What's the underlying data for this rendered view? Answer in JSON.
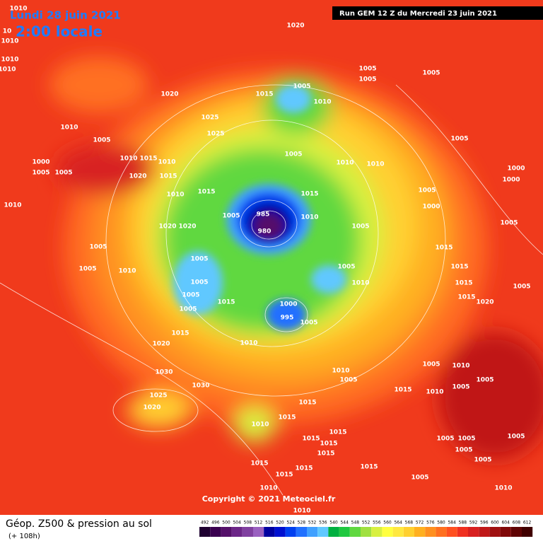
{
  "header": {
    "date": "Lundi 28 juin 2021",
    "time": "2:00 locale",
    "run": "Run GEM 12 Z du Mercredi 23 juin 2021"
  },
  "map": {
    "corner_labels": [
      "1010",
      "10",
      "1010"
    ],
    "pressure_labels": [
      1020,
      1010,
      1010,
      1005,
      1005,
      1005,
      1005,
      1015,
      1010,
      1020,
      1010,
      1005,
      1025,
      1025,
      1005,
      1010,
      1010,
      1005,
      1000,
      1005,
      1005,
      1010,
      1015,
      1010,
      1020,
      1015,
      1015,
      1010,
      1010,
      1005,
      1000,
      1000,
      1000,
      1005,
      985,
      980,
      1005,
      1015,
      1010,
      1005,
      1020,
      1020,
      1005,
      1005,
      1005,
      1015,
      1005,
      1010,
      1010,
      1005,
      1005,
      1005,
      1015,
      1000,
      995,
      1005,
      1015,
      1015,
      1015,
      1020,
      1005,
      1015,
      1020,
      1010,
      1030,
      1030,
      1010,
      1005,
      1015,
      1010,
      1010,
      1005,
      1005,
      1025,
      1020,
      1015,
      1005,
      1010,
      1015,
      1015,
      1015,
      1015,
      1015,
      1005,
      1005,
      1005,
      1005,
      1005,
      1010,
      1015,
      1015,
      1015,
      1005,
      1015,
      1010,
      1010
    ]
  },
  "copyright": "Copyright © 2021 Meteociel.fr",
  "legend": {
    "title": "Géop. Z500 & pression au sol",
    "subtitle": "(+ 108h)",
    "scale": [
      492,
      496,
      500,
      504,
      508,
      512,
      516,
      520,
      524,
      528,
      532,
      536,
      540,
      544,
      548,
      552,
      556,
      560,
      564,
      568,
      572,
      576,
      580,
      584,
      588,
      592,
      596,
      600,
      604,
      608,
      612
    ],
    "colors": [
      "#1e0030",
      "#3a0050",
      "#55106a",
      "#6c2688",
      "#8040a0",
      "#9a60c0",
      "#0000a0",
      "#0010d0",
      "#0040f0",
      "#2070ff",
      "#40a0ff",
      "#60c8ff",
      "#00b040",
      "#20c840",
      "#60d840",
      "#a0e040",
      "#d8f040",
      "#ffff40",
      "#ffe840",
      "#ffd030",
      "#ffb020",
      "#ff9020",
      "#ff7020",
      "#ff5020",
      "#f03020",
      "#d82020",
      "#c01818",
      "#a01010",
      "#800808",
      "#600404",
      "#400000"
    ]
  }
}
